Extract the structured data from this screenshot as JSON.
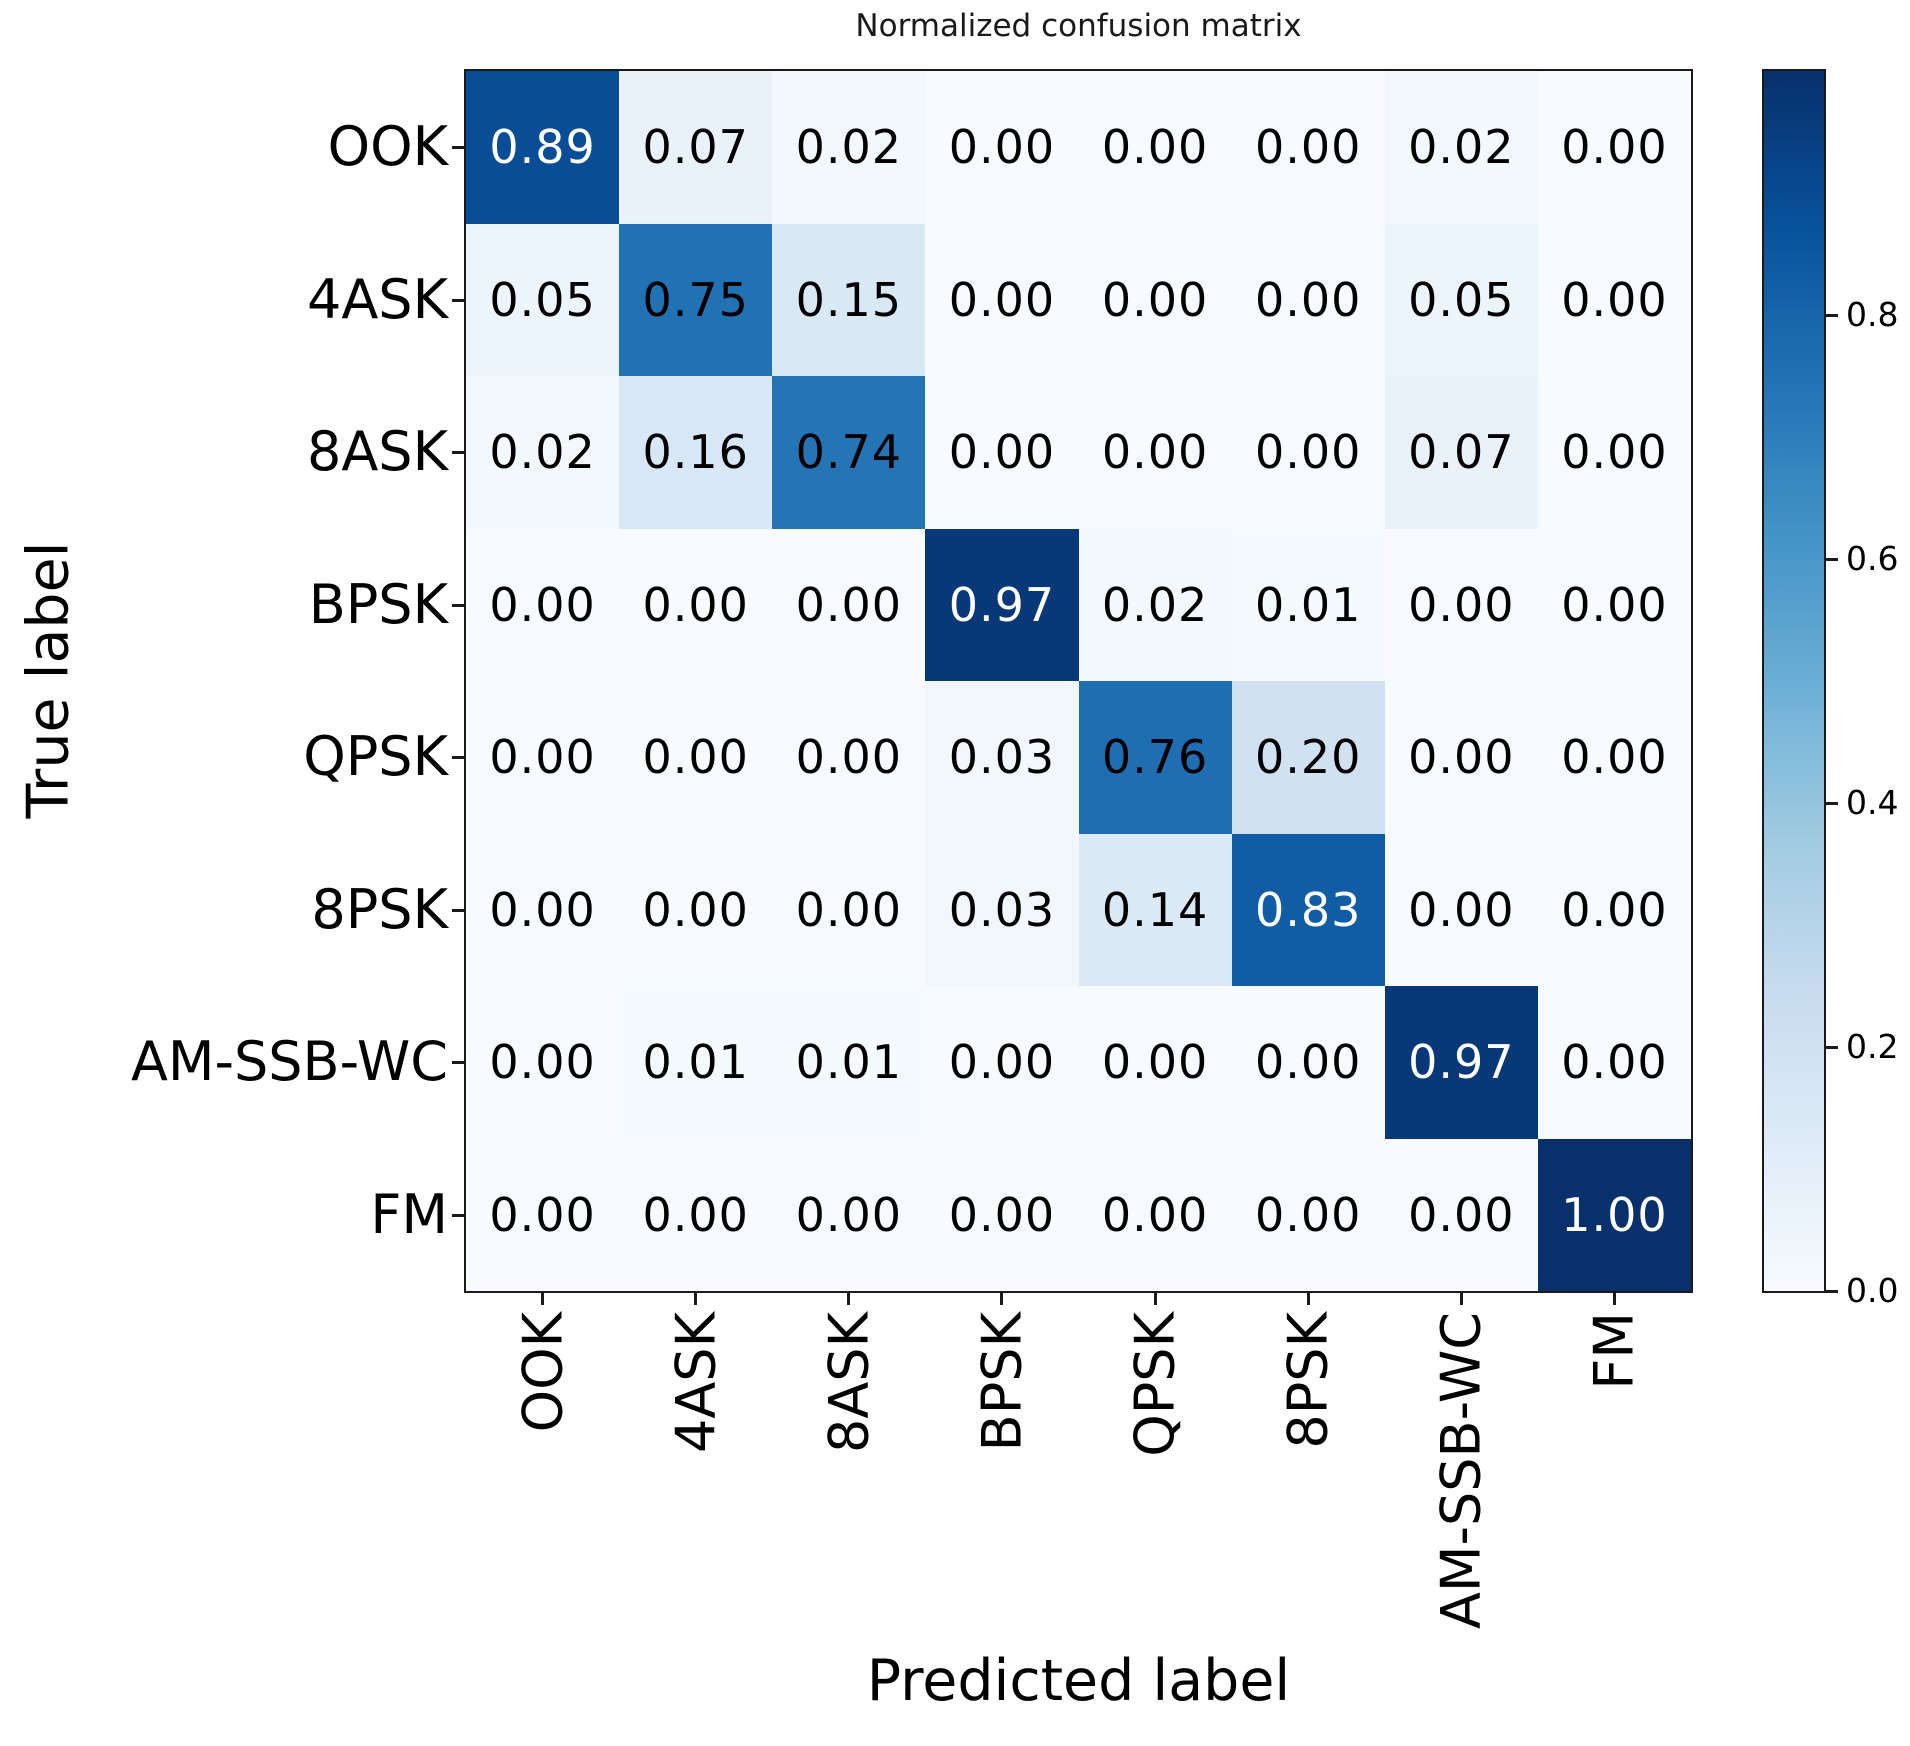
{
  "chart_data": {
    "type": "heatmap",
    "title": "Normalized confusion matrix",
    "xlabel": "Predicted label",
    "ylabel": "True label",
    "categories": [
      "OOK",
      "4ASK",
      "8ASK",
      "BPSK",
      "QPSK",
      "8PSK",
      "AM-SSB-WC",
      "FM"
    ],
    "matrix": [
      [
        0.89,
        0.07,
        0.02,
        0.0,
        0.0,
        0.0,
        0.02,
        0.0
      ],
      [
        0.05,
        0.75,
        0.15,
        0.0,
        0.0,
        0.0,
        0.05,
        0.0
      ],
      [
        0.02,
        0.16,
        0.74,
        0.0,
        0.0,
        0.0,
        0.07,
        0.0
      ],
      [
        0.0,
        0.0,
        0.0,
        0.97,
        0.02,
        0.01,
        0.0,
        0.0
      ],
      [
        0.0,
        0.0,
        0.0,
        0.03,
        0.76,
        0.2,
        0.0,
        0.0
      ],
      [
        0.0,
        0.0,
        0.0,
        0.03,
        0.14,
        0.83,
        0.0,
        0.0
      ],
      [
        0.0,
        0.01,
        0.01,
        0.0,
        0.0,
        0.0,
        0.97,
        0.0
      ],
      [
        0.0,
        0.0,
        0.0,
        0.0,
        0.0,
        0.0,
        0.0,
        1.0
      ]
    ],
    "value_decimals": 2,
    "vmin": 0.0,
    "vmax": 1.0,
    "colormap_name": "Blues",
    "colormap_anchors": [
      [
        0.0,
        "#f7fbff"
      ],
      [
        0.125,
        "#deebf7"
      ],
      [
        0.25,
        "#c6dbef"
      ],
      [
        0.375,
        "#9ecae1"
      ],
      [
        0.5,
        "#6baed6"
      ],
      [
        0.625,
        "#4292c6"
      ],
      [
        0.75,
        "#2171b5"
      ],
      [
        0.875,
        "#08519c"
      ],
      [
        1.0,
        "#08306b"
      ]
    ],
    "colorbar_tick_labels": [
      "0.0",
      "0.2",
      "0.4",
      "0.6",
      "0.8"
    ],
    "text_color_threshold": 0.8,
    "grid": false,
    "legend_position": "colorbar-right"
  },
  "colors": {
    "cell_text_dark": "#000000",
    "cell_text_light": "#ffffff",
    "axis": "#1a1a1a",
    "background": "#ffffff"
  }
}
